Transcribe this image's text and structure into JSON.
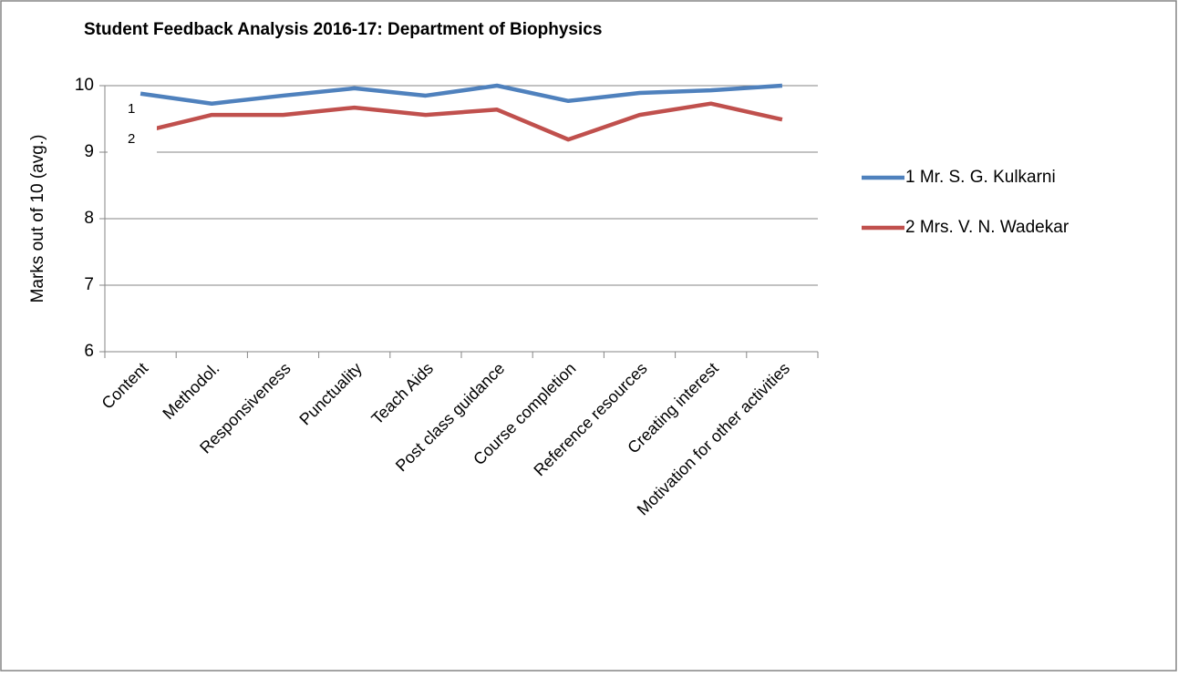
{
  "chart_data": {
    "type": "line",
    "title": "Student Feedback Analysis 2016-17: Department of Biophysics",
    "y_label": "Marks out of 10 (avg.)",
    "categories": [
      "Content",
      "Methodol.",
      "Responsiveness",
      "Punctuality",
      "Teach Aids",
      "Post class guidance",
      "Course completion",
      "Reference resources",
      "Creating interest",
      "Motivation for other activities"
    ],
    "series": [
      {
        "name": "1 Mr. S. G. Kulkarni",
        "color": "#4f81bd",
        "values": [
          9.88,
          9.73,
          9.85,
          9.96,
          9.85,
          10,
          9.77,
          9.89,
          9.93,
          10
        ]
      },
      {
        "name": "2 Mrs. V. N. Wadekar",
        "color": "#c0504d",
        "values": [
          9.3,
          9.56,
          9.56,
          9.67,
          9.56,
          9.64,
          9.19,
          9.56,
          9.73,
          9.49
        ]
      }
    ],
    "annotations": [
      "1",
      "2"
    ],
    "ylim": [
      6,
      10
    ],
    "yticks": [
      6,
      7,
      8,
      9,
      10
    ],
    "grid": true,
    "legend": "right"
  }
}
